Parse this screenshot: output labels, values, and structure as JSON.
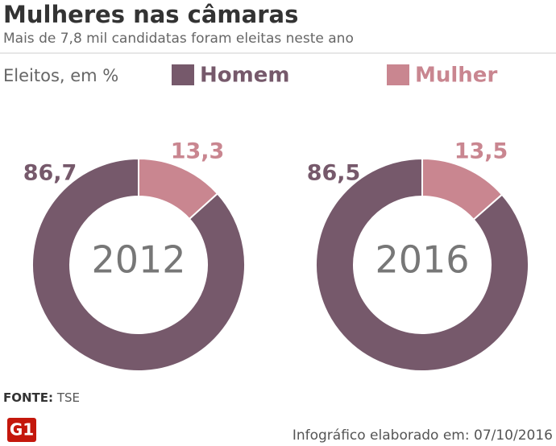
{
  "title": "Mulheres nas câmaras",
  "subtitle": "Mais de 7,8 mil candidatas foram eleitas neste ano",
  "unit_label": "Eleitos, em %",
  "chart_data": [
    {
      "type": "donut",
      "center_label": "2012",
      "categories": [
        "Homem",
        "Mulher"
      ],
      "values": [
        86.7,
        13.3
      ],
      "value_labels": [
        "86,7",
        "13,3"
      ],
      "colors": [
        "#76596b",
        "#c98690"
      ]
    },
    {
      "type": "donut",
      "center_label": "2016",
      "categories": [
        "Homem",
        "Mulher"
      ],
      "values": [
        86.5,
        13.5
      ],
      "value_labels": [
        "86,5",
        "13,5"
      ],
      "colors": [
        "#76596b",
        "#c98690"
      ]
    }
  ],
  "source": {
    "label": "FONTE:",
    "text": "TSE"
  },
  "footer": {
    "logo": "G1",
    "credit": "Infográfico elaborado em: 07/10/2016"
  }
}
